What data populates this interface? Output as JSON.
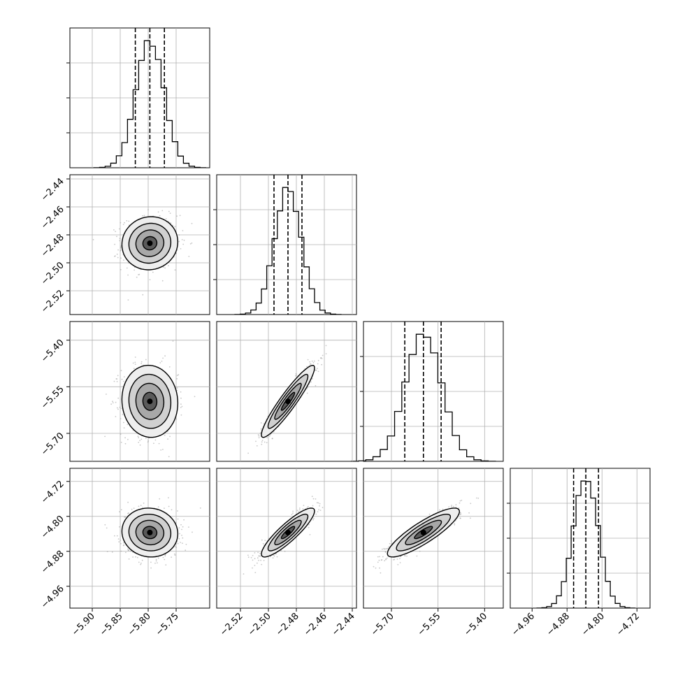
{
  "chart_data": {
    "type": "corner",
    "parameters": [
      {
        "index": 0,
        "range": [
          -5.94,
          -5.69
        ],
        "ticks": [
          -5.9,
          -5.85,
          -5.8,
          -5.75
        ],
        "tick_labels": [
          "−5.90",
          "−5.85",
          "−5.80",
          "−5.75"
        ],
        "quantiles": [
          -5.823,
          -5.797,
          -5.771
        ],
        "center": -5.797,
        "sd": 0.025
      },
      {
        "index": 1,
        "range": [
          -2.537,
          -2.437
        ],
        "ticks": [
          -2.52,
          -2.5,
          -2.48,
          -2.46,
          -2.44
        ],
        "tick_labels": [
          "−2.52",
          "−2.50",
          "−2.48",
          "−2.46",
          "−2.44"
        ],
        "quantiles": [
          -2.496,
          -2.486,
          -2.476
        ],
        "center": -2.486,
        "sd": 0.0095
      },
      {
        "index": 2,
        "range": [
          -5.79,
          -5.34
        ],
        "ticks": [
          -5.7,
          -5.55,
          -5.4
        ],
        "tick_labels": [
          "−5.70",
          "−5.55",
          "−5.40"
        ],
        "quantiles": [
          -5.657,
          -5.597,
          -5.54
        ],
        "center": -5.597,
        "sd": 0.058
      },
      {
        "index": 3,
        "range": [
          -5.01,
          -4.69
        ],
        "ticks": [
          -4.96,
          -4.88,
          -4.8,
          -4.72
        ],
        "tick_labels": [
          "−4.96",
          "−4.88",
          "−4.80",
          "−4.72"
        ],
        "quantiles": [
          -4.865,
          -4.837,
          -4.808
        ],
        "center": -4.837,
        "sd": 0.028
      }
    ],
    "correlations": [
      {
        "pair": [
          1,
          0
        ],
        "rho": 0.05
      },
      {
        "pair": [
          2,
          0
        ],
        "rho": -0.05
      },
      {
        "pair": [
          2,
          1
        ],
        "rho": 0.93
      },
      {
        "pair": [
          3,
          0
        ],
        "rho": -0.05
      },
      {
        "pair": [
          3,
          1
        ],
        "rho": 0.88
      },
      {
        "pair": [
          3,
          2
        ],
        "rho": 0.86
      }
    ],
    "contour_levels_sigma": [
      0.5,
      1.0,
      1.5,
      2.0
    ],
    "histogram_bins": 20,
    "grid": true,
    "colors": {
      "line": "#000000",
      "grid": "#b0b0b0",
      "points": "#9a9a9a"
    }
  }
}
